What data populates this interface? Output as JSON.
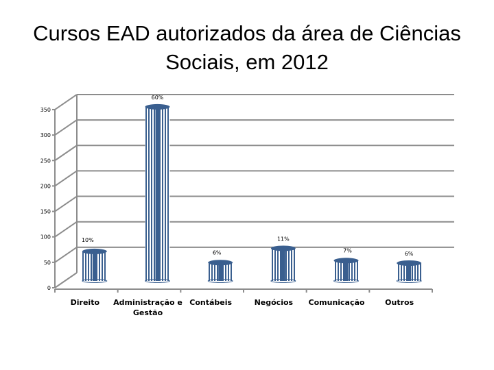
{
  "slide": {
    "title_line1": "Cursos EAD autorizados da área de Ciências",
    "title_line2": "Sociais, em 2012"
  },
  "chart_data": {
    "type": "bar",
    "style": "3d-cylinder",
    "title": "Cursos EAD autorizados da área de Ciências Sociais, em 2012",
    "xlabel": "",
    "ylabel": "",
    "categories": [
      "Direito",
      "Administração e Gestão",
      "Contábeis",
      "Negócios",
      "Comunicação",
      "Outros"
    ],
    "category_lines": [
      [
        "Direito"
      ],
      [
        "Administração e",
        "Gestão"
      ],
      [
        "Contábeis"
      ],
      [
        "Negócios"
      ],
      [
        "Comunicação"
      ],
      [
        "Outros"
      ]
    ],
    "values": [
      58,
      342,
      36,
      64,
      40,
      35
    ],
    "data_labels": [
      "10%",
      "60%",
      "6%",
      "11%",
      "7%",
      "6%"
    ],
    "yticks": [
      0,
      50,
      100,
      150,
      200,
      250,
      300,
      350
    ],
    "ylim": [
      0,
      350
    ],
    "grid": true,
    "legend": "none",
    "bar_color": "#3a5f8f"
  }
}
